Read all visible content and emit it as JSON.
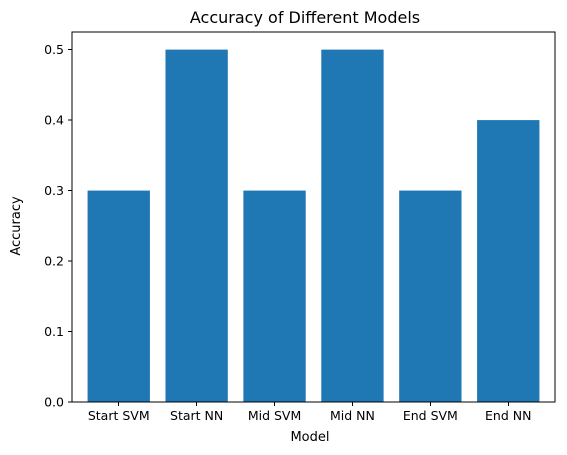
{
  "chart_data": {
    "type": "bar",
    "title": "Accuracy of Different Models",
    "xlabel": "Model",
    "ylabel": "Accuracy",
    "categories": [
      "Start SVM",
      "Start NN",
      "Mid SVM",
      "Mid NN",
      "End SVM",
      "End NN"
    ],
    "values": [
      0.3,
      0.5,
      0.3,
      0.5,
      0.3,
      0.4
    ],
    "ylim": [
      0,
      0.525
    ],
    "yticks": [
      0.0,
      0.1,
      0.2,
      0.3,
      0.4,
      0.5
    ],
    "ytick_labels": [
      "0.0",
      "0.1",
      "0.2",
      "0.3",
      "0.4",
      "0.5"
    ],
    "grid": false,
    "bar_color": "#1f77b4"
  }
}
